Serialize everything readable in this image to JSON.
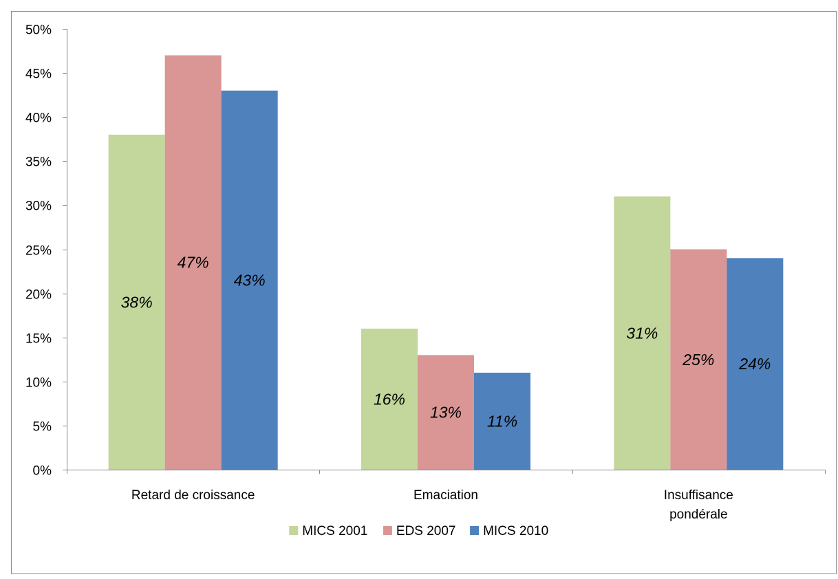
{
  "chart_data": {
    "type": "bar",
    "title": "",
    "xlabel": "",
    "ylabel": "",
    "ylim": [
      0,
      50
    ],
    "y_ticks": [
      "0%",
      "5%",
      "10%",
      "15%",
      "20%",
      "25%",
      "30%",
      "35%",
      "40%",
      "45%",
      "50%"
    ],
    "categories": [
      [
        "Retard de croissance"
      ],
      [
        "Emaciation"
      ],
      [
        "Insuffisance",
        "pondérale"
      ]
    ],
    "series": [
      {
        "name": "MICS 2001",
        "color": "#c3d69b",
        "values": [
          38,
          16,
          31
        ],
        "labels": [
          "38%",
          "16%",
          "31%"
        ]
      },
      {
        "name": "EDS 2007",
        "color": "#d99694",
        "values": [
          47,
          13,
          25
        ],
        "labels": [
          "47%",
          "13%",
          "25%"
        ]
      },
      {
        "name": "MICS 2010",
        "color": "#4f81bd",
        "values": [
          43,
          11,
          24
        ],
        "labels": [
          "43%",
          "11%",
          "24%"
        ]
      }
    ],
    "legend_position": "bottom",
    "grid": false
  }
}
